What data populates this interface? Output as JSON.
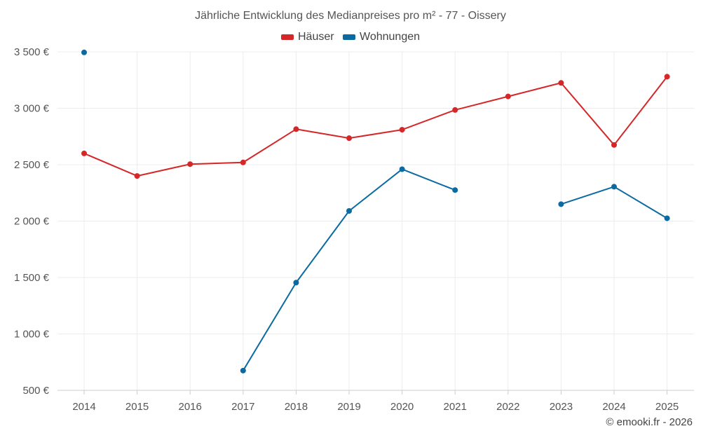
{
  "chart_data": {
    "type": "line",
    "title": "Jährliche Entwicklung des Medianpreises pro m² - 77 - Oissery",
    "x": [
      "2014",
      "2015",
      "2016",
      "2017",
      "2018",
      "2019",
      "2020",
      "2021",
      "2022",
      "2023",
      "2024",
      "2025"
    ],
    "series": [
      {
        "name": "Häuser",
        "color": "#d62728",
        "values": [
          2600,
          2400,
          2505,
          2520,
          2815,
          2735,
          2810,
          2985,
          3105,
          3225,
          2675,
          3280
        ]
      },
      {
        "name": "Wohnungen",
        "color": "#0a6aa1",
        "values": [
          3495,
          null,
          null,
          675,
          1455,
          2090,
          2460,
          2275,
          null,
          2150,
          2305,
          2025
        ]
      }
    ],
    "ylim": [
      500,
      3500
    ],
    "yticks": [
      500,
      1000,
      1500,
      2000,
      2500,
      3000,
      3500
    ],
    "ytick_labels": [
      "500 €",
      "1 000 €",
      "1 500 €",
      "2 000 €",
      "2 500 €",
      "3 000 €",
      "3 500 €"
    ],
    "legend_position": "top-center",
    "grid": true
  },
  "footer": {
    "credit": "© emooki.fr - 2026"
  }
}
